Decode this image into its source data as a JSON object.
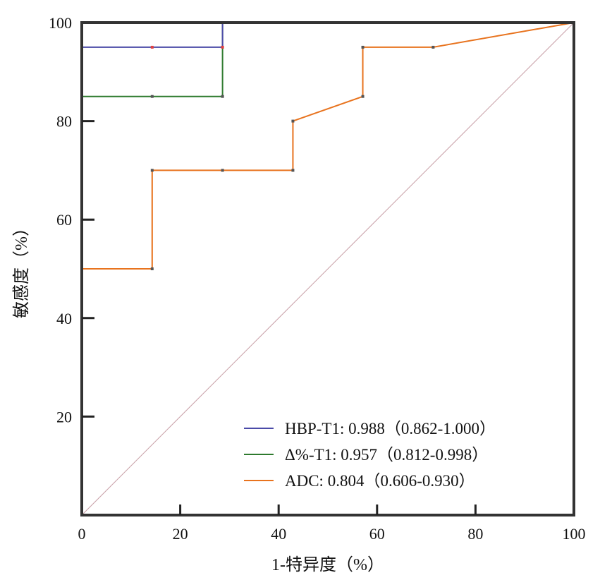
{
  "chart_data": {
    "type": "line",
    "title": "",
    "xlabel": "1-特异度（%）",
    "ylabel": "敏感度（%）",
    "xlim": [
      0,
      100
    ],
    "ylim": [
      0,
      100
    ],
    "x_ticks": [
      "0",
      "20",
      "40",
      "60",
      "80",
      "100"
    ],
    "y_ticks": [
      "20",
      "40",
      "60",
      "80",
      "100"
    ],
    "grid": false,
    "legend_position": "bottom-right",
    "reference_line": {
      "x": [
        0,
        100
      ],
      "y": [
        0,
        100
      ],
      "color": "#c8a0a8"
    },
    "series": [
      {
        "name": "HBP-T1: 0.988（0.862-1.000）",
        "color": "#4a4aa8",
        "x": [
          0,
          0,
          14.3,
          28.6,
          28.6,
          100
        ],
        "y": [
          0,
          95,
          95,
          95,
          100,
          100
        ]
      },
      {
        "name": "Δ%-T1: 0.957（0.812-0.998）",
        "color": "#2e7a2e",
        "x": [
          0,
          0,
          14.3,
          28.6,
          28.6,
          42.9,
          57.1,
          71.4,
          85.7,
          100
        ],
        "y": [
          0,
          85,
          85,
          85,
          100,
          100,
          100,
          100,
          100,
          100
        ]
      },
      {
        "name": "ADC: 0.804（0.606-0.930）",
        "color": "#e8731e",
        "x": [
          0,
          0,
          14.3,
          14.3,
          28.6,
          42.9,
          42.9,
          57.1,
          57.1,
          71.4,
          100
        ],
        "y": [
          0,
          50,
          50,
          70,
          70,
          70,
          80,
          85,
          95,
          95,
          100
        ]
      }
    ]
  }
}
